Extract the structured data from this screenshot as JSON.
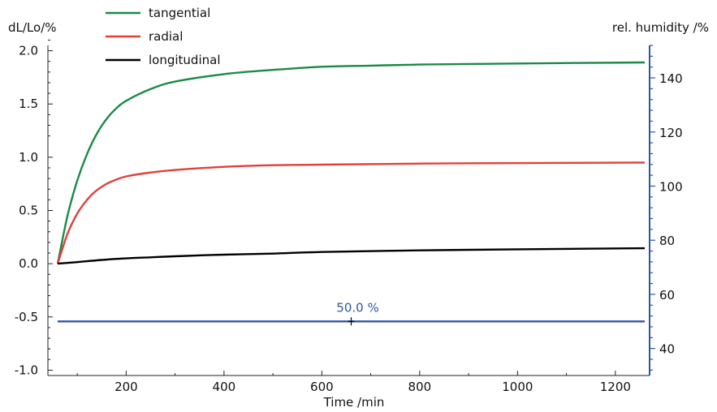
{
  "chart_data": {
    "type": "line",
    "title": "",
    "xlabel": "Time /min",
    "ylabel_left": "dL/Lo/%",
    "ylabel_right": "rel. humidity /%",
    "xlim": [
      40,
      1270
    ],
    "ylim_left": [
      -1.05,
      2.05
    ],
    "ylim_right": [
      30,
      152
    ],
    "x_ticks": [
      200,
      400,
      600,
      800,
      1000,
      1200
    ],
    "y_left_ticks": [
      -1.0,
      -0.5,
      0.0,
      0.5,
      1.0,
      1.5,
      2.0
    ],
    "y_left_tick_labels": [
      "-1.0",
      "-0.5",
      "0.0",
      "0.5",
      "1.0",
      "1.5",
      "2.0"
    ],
    "y_right_ticks": [
      40,
      60,
      80,
      100,
      120,
      140
    ],
    "grid": false,
    "legend_position": "top-left",
    "series": [
      {
        "name": "tangential",
        "axis": "left",
        "color": "#1a8a48",
        "x": [
          60,
          80,
          100,
          120,
          140,
          160,
          180,
          200,
          250,
          300,
          400,
          500,
          600,
          700,
          800,
          1000,
          1260
        ],
        "y": [
          0.0,
          0.45,
          0.78,
          1.03,
          1.22,
          1.36,
          1.46,
          1.53,
          1.64,
          1.71,
          1.78,
          1.82,
          1.85,
          1.86,
          1.87,
          1.88,
          1.89
        ]
      },
      {
        "name": "radial",
        "axis": "left",
        "color": "#e0403c",
        "x": [
          60,
          80,
          100,
          120,
          140,
          160,
          180,
          200,
          240,
          300,
          400,
          500,
          600,
          800,
          1000,
          1260
        ],
        "y": [
          0.0,
          0.28,
          0.47,
          0.6,
          0.69,
          0.75,
          0.79,
          0.82,
          0.85,
          0.88,
          0.91,
          0.925,
          0.93,
          0.94,
          0.945,
          0.95
        ]
      },
      {
        "name": "longitudinal",
        "axis": "left",
        "color": "#000000",
        "x": [
          60,
          100,
          150,
          200,
          250,
          300,
          400,
          500,
          600,
          800,
          1000,
          1260
        ],
        "y": [
          0.0,
          0.015,
          0.035,
          0.05,
          0.06,
          0.07,
          0.085,
          0.095,
          0.11,
          0.125,
          0.135,
          0.145
        ]
      },
      {
        "name": "",
        "axis": "right",
        "color": "#2e55a5",
        "x": [
          60,
          1260
        ],
        "y": [
          50,
          50
        ]
      }
    ],
    "annotations": [
      {
        "text": "50.0 %",
        "x": 660,
        "y": 50,
        "axis": "right",
        "color": "#2e55a5"
      }
    ]
  }
}
